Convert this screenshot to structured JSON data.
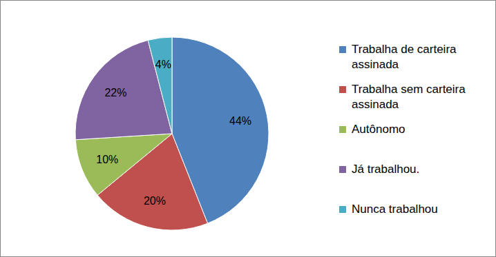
{
  "chart_data": {
    "type": "pie",
    "categories": [
      "Trabalha de carteira assinada",
      "Trabalha sem carteira assinada",
      "Autônomo",
      "Já trabalhou.",
      "Nunca trabalhou"
    ],
    "values": [
      44,
      20,
      10,
      22,
      4
    ],
    "value_labels": [
      "44%",
      "20%",
      "10%",
      "22%",
      "4%"
    ],
    "colors": [
      "#4f81bd",
      "#c0504d",
      "#9bbb59",
      "#8064a2",
      "#4bacc6"
    ],
    "data_labels": true,
    "legend": "right"
  }
}
